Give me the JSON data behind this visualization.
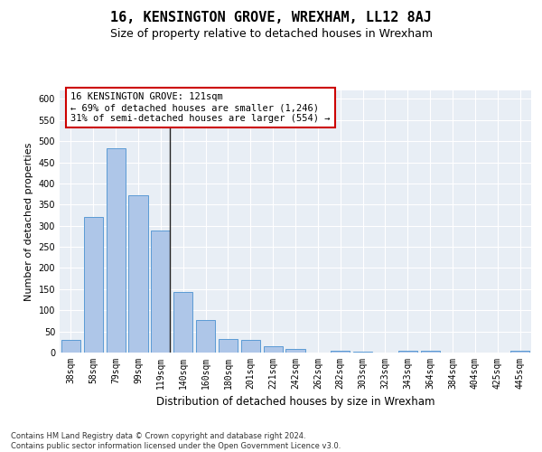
{
  "title": "16, KENSINGTON GROVE, WREXHAM, LL12 8AJ",
  "subtitle": "Size of property relative to detached houses in Wrexham",
  "xlabel": "Distribution of detached houses by size in Wrexham",
  "ylabel": "Number of detached properties",
  "categories": [
    "38sqm",
    "58sqm",
    "79sqm",
    "99sqm",
    "119sqm",
    "140sqm",
    "160sqm",
    "180sqm",
    "201sqm",
    "221sqm",
    "242sqm",
    "262sqm",
    "282sqm",
    "303sqm",
    "323sqm",
    "343sqm",
    "364sqm",
    "384sqm",
    "404sqm",
    "425sqm",
    "445sqm"
  ],
  "values": [
    30,
    320,
    483,
    373,
    288,
    143,
    76,
    32,
    29,
    15,
    8,
    0,
    5,
    2,
    0,
    4,
    4,
    0,
    0,
    0,
    4
  ],
  "bar_color": "#aec6e8",
  "bar_edge_color": "#5b9bd5",
  "highlight_bar_index": 4,
  "highlight_line_color": "#222222",
  "annotation_text": "16 KENSINGTON GROVE: 121sqm\n← 69% of detached houses are smaller (1,246)\n31% of semi-detached houses are larger (554) →",
  "annotation_box_color": "#ffffff",
  "annotation_box_edge_color": "#cc0000",
  "ylim": [
    0,
    620
  ],
  "yticks": [
    0,
    50,
    100,
    150,
    200,
    250,
    300,
    350,
    400,
    450,
    500,
    550,
    600
  ],
  "background_color": "#ffffff",
  "plot_bg_color": "#e8eef5",
  "grid_color": "#ffffff",
  "footnote": "Contains HM Land Registry data © Crown copyright and database right 2024.\nContains public sector information licensed under the Open Government Licence v3.0.",
  "title_fontsize": 11,
  "subtitle_fontsize": 9,
  "xlabel_fontsize": 8.5,
  "ylabel_fontsize": 8,
  "tick_fontsize": 7,
  "annotation_fontsize": 7.5,
  "footnote_fontsize": 6
}
